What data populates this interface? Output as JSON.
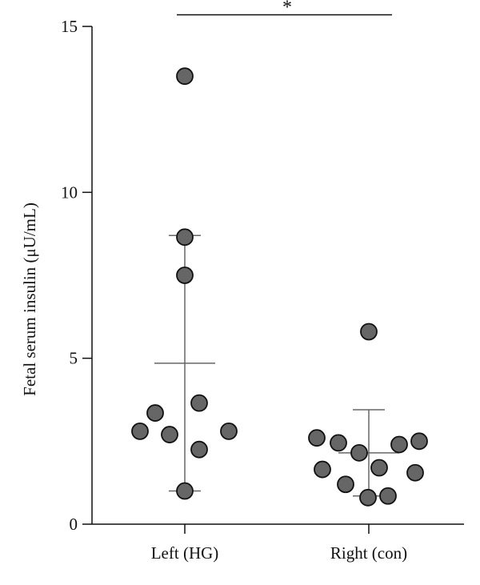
{
  "chart_data": {
    "type": "scatter",
    "ylabel": "Fetal serum insulin (μU/mL)",
    "ylim": [
      0,
      15
    ],
    "yticks": [
      0,
      5,
      10,
      15
    ],
    "categories": [
      "Left (HG)",
      "Right (con)"
    ],
    "grid": false,
    "groups": [
      {
        "category": "Left (HG)",
        "values": [
          13.5,
          8.65,
          7.5,
          3.65,
          3.35,
          2.8,
          2.7,
          2.8,
          2.25,
          1.0
        ],
        "mean": 4.85,
        "sd_upper": 8.7,
        "sd_lower": 1.0
      },
      {
        "category": "Right (con)",
        "values": [
          5.8,
          2.6,
          2.45,
          2.15,
          2.4,
          2.5,
          1.65,
          1.7,
          1.2,
          1.55,
          0.8,
          0.85
        ],
        "mean": 2.15,
        "sd_upper": 3.45,
        "sd_lower": 0.85
      }
    ],
    "significance": {
      "between": [
        "Left (HG)",
        "Right (con)"
      ],
      "y": 15.35,
      "label": "*"
    }
  }
}
